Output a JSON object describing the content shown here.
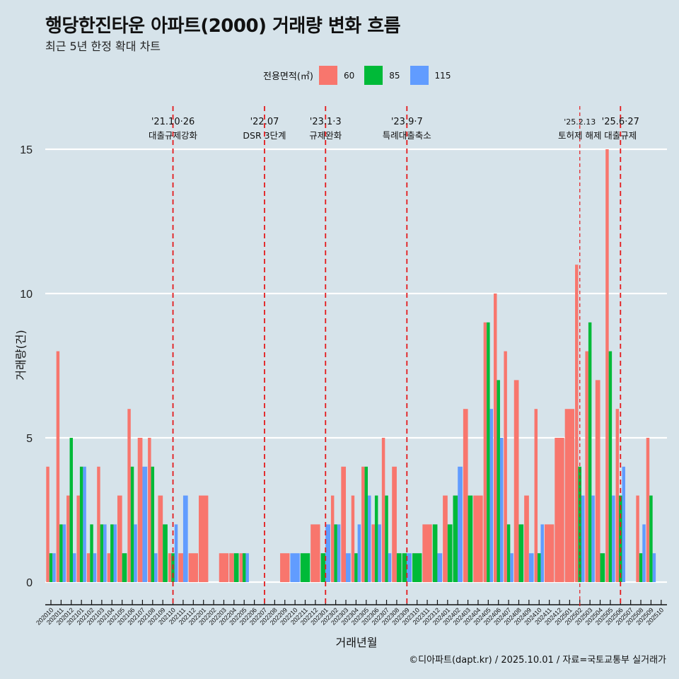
{
  "header": {
    "title": "행당한진타운 아파트(2000) 거래량 변화 흐름",
    "subtitle": "최근 5년 한정 확대 차트"
  },
  "legend": {
    "title": "전용면적(㎡)",
    "items": [
      {
        "label": "60",
        "color": "#f8766d"
      },
      {
        "label": "85",
        "color": "#00ba38"
      },
      {
        "label": "115",
        "color": "#619cff"
      }
    ]
  },
  "footer": "©디아파트(dapt.kr) / 2025.10.01 / 자료=국토교통부 실거래가",
  "chart_data": {
    "type": "bar",
    "title": "행당한진타운 아파트(2000) 거래량 변화 흐름",
    "subtitle": "최근 5년 한정 확대 차트",
    "xlabel": "거래년월",
    "ylabel": "거래량(건)",
    "ylim": [
      0,
      15.5
    ],
    "yticks": [
      0,
      5,
      10,
      15
    ],
    "grid": true,
    "legend_position": "top",
    "categories": [
      "202010",
      "202011",
      "202012",
      "202101",
      "202102",
      "202103",
      "202104",
      "202105",
      "202106",
      "202107",
      "202108",
      "202109",
      "202110",
      "202111",
      "202112",
      "202201",
      "202202",
      "202203",
      "202204",
      "202205",
      "202206",
      "202207",
      "202208",
      "202209",
      "202210",
      "202211",
      "202212",
      "202301",
      "202302",
      "202303",
      "202304",
      "202305",
      "202306",
      "202307",
      "202308",
      "202309",
      "202310",
      "202311",
      "202312",
      "202401",
      "202402",
      "202403",
      "202404",
      "202405",
      "202406",
      "202407",
      "202408",
      "202409",
      "202410",
      "202411",
      "202412",
      "202501",
      "202502",
      "202503",
      "202504",
      "202505",
      "202506",
      "202507",
      "202508",
      "202509",
      "202510"
    ],
    "series": [
      {
        "name": "60",
        "color": "#f8766d",
        "values": [
          4,
          8,
          3,
          3,
          1,
          4,
          1,
          3,
          6,
          5,
          5,
          3,
          1,
          1,
          1,
          3,
          null,
          1,
          1,
          1,
          null,
          null,
          null,
          1,
          null,
          null,
          2,
          null,
          3,
          4,
          3,
          4,
          2,
          5,
          4,
          null,
          null,
          2,
          null,
          3,
          null,
          6,
          3,
          9,
          10,
          8,
          7,
          3,
          6,
          2,
          5,
          6,
          11,
          8,
          7,
          15,
          6,
          null,
          3,
          5,
          null
        ]
      },
      {
        "name": "85",
        "color": "#00ba38",
        "values": [
          1,
          2,
          5,
          4,
          2,
          2,
          2,
          1,
          4,
          null,
          4,
          2,
          1,
          null,
          null,
          null,
          null,
          null,
          1,
          1,
          null,
          null,
          null,
          null,
          null,
          1,
          null,
          1,
          2,
          null,
          1,
          4,
          3,
          3,
          1,
          1,
          1,
          null,
          2,
          2,
          3,
          3,
          null,
          9,
          7,
          2,
          2,
          null,
          1,
          null,
          null,
          null,
          4,
          9,
          1,
          8,
          3,
          null,
          1,
          3,
          null
        ]
      },
      {
        "name": "115",
        "color": "#619cff",
        "values": [
          1,
          2,
          1,
          4,
          1,
          2,
          2,
          null,
          2,
          4,
          1,
          null,
          2,
          3,
          null,
          null,
          null,
          null,
          null,
          1,
          null,
          null,
          null,
          null,
          1,
          null,
          null,
          2,
          2,
          1,
          2,
          3,
          2,
          1,
          null,
          1,
          null,
          null,
          1,
          null,
          4,
          null,
          null,
          6,
          5,
          1,
          null,
          1,
          2,
          null,
          null,
          null,
          3,
          3,
          null,
          3,
          4,
          null,
          2,
          1,
          null
        ]
      }
    ],
    "annotations": [
      {
        "month": "202110",
        "date": "'21.10·26",
        "text": "대출규제강화",
        "style": "dashed"
      },
      {
        "month": "202207",
        "date": "'22.07",
        "text": "DSR 3단계",
        "style": "dashed"
      },
      {
        "month": "202301",
        "date": "'23.1·3",
        "text": "규제완화",
        "style": "dashed"
      },
      {
        "month": "202309",
        "date": "'23.9·7",
        "text": "특례대출축소",
        "style": "dashed"
      },
      {
        "month": "202502",
        "date": "'25.2.13",
        "text": "토허제 해제",
        "style": "thin-dashed"
      },
      {
        "month": "202506",
        "date": "'25.6·27",
        "text": "대출규제",
        "style": "dashed"
      }
    ]
  }
}
